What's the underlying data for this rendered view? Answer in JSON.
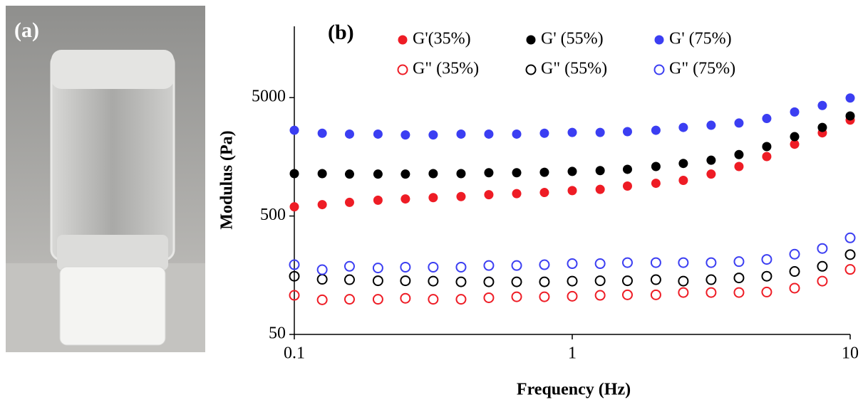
{
  "photo_label": "(a)",
  "chart_data": {
    "type": "scatter",
    "panel_label": "(b)",
    "x_label": "Frequency (Hz)",
    "y_label": "Modulus (Pa)",
    "log_x": true,
    "log_y": true,
    "xlim": [
      0.1,
      10
    ],
    "xticks": [
      0.1,
      1,
      10
    ],
    "ylim": [
      50,
      20000
    ],
    "yticks": [
      50,
      500,
      5000
    ],
    "x": [
      0.1,
      0.126,
      0.158,
      0.2,
      0.251,
      0.316,
      0.398,
      0.501,
      0.631,
      0.794,
      1,
      1.26,
      1.58,
      2,
      2.51,
      3.16,
      3.98,
      5.01,
      6.31,
      7.94,
      10
    ],
    "series": [
      {
        "name": "G'(35%)",
        "color": "#ee1c25",
        "filled": true,
        "values": [
          598,
          624,
          652,
          680,
          697,
          715,
          730,
          757,
          773,
          790,
          820,
          840,
          895,
          945,
          1000,
          1130,
          1310,
          1590,
          2020,
          2520,
          3230
        ]
      },
      {
        "name": "G' (55%)",
        "color": "#000000",
        "filled": true,
        "values": [
          1140,
          1140,
          1130,
          1130,
          1130,
          1140,
          1140,
          1160,
          1160,
          1170,
          1190,
          1210,
          1240,
          1310,
          1390,
          1480,
          1650,
          1930,
          2340,
          2800,
          3500
        ]
      },
      {
        "name": "G' (75%)",
        "color": "#3b3ef2",
        "filled": true,
        "values": [
          2650,
          2500,
          2460,
          2460,
          2420,
          2420,
          2460,
          2460,
          2460,
          2500,
          2540,
          2540,
          2580,
          2650,
          2800,
          2920,
          3050,
          3330,
          3780,
          4290,
          4960
        ]
      },
      {
        "name": "G\" (35%)",
        "color": "#ee1c25",
        "filled": false,
        "values": [
          107,
          98,
          99,
          99,
          101,
          99,
          99,
          102,
          104,
          104,
          105,
          107,
          108,
          108,
          113,
          113,
          113,
          114,
          123,
          141,
          177
        ]
      },
      {
        "name": "G\" (55%)",
        "color": "#000000",
        "filled": false,
        "values": [
          155,
          146,
          145,
          142,
          142,
          141,
          139,
          139,
          139,
          139,
          141,
          142,
          142,
          145,
          141,
          145,
          150,
          155,
          170,
          188,
          236
        ]
      },
      {
        "name": "G\" (75%)",
        "color": "#3b3ef2",
        "filled": false,
        "values": [
          194,
          176,
          188,
          182,
          185,
          185,
          185,
          191,
          191,
          194,
          198,
          198,
          202,
          202,
          202,
          202,
          206,
          215,
          238,
          266,
          327
        ]
      }
    ]
  }
}
